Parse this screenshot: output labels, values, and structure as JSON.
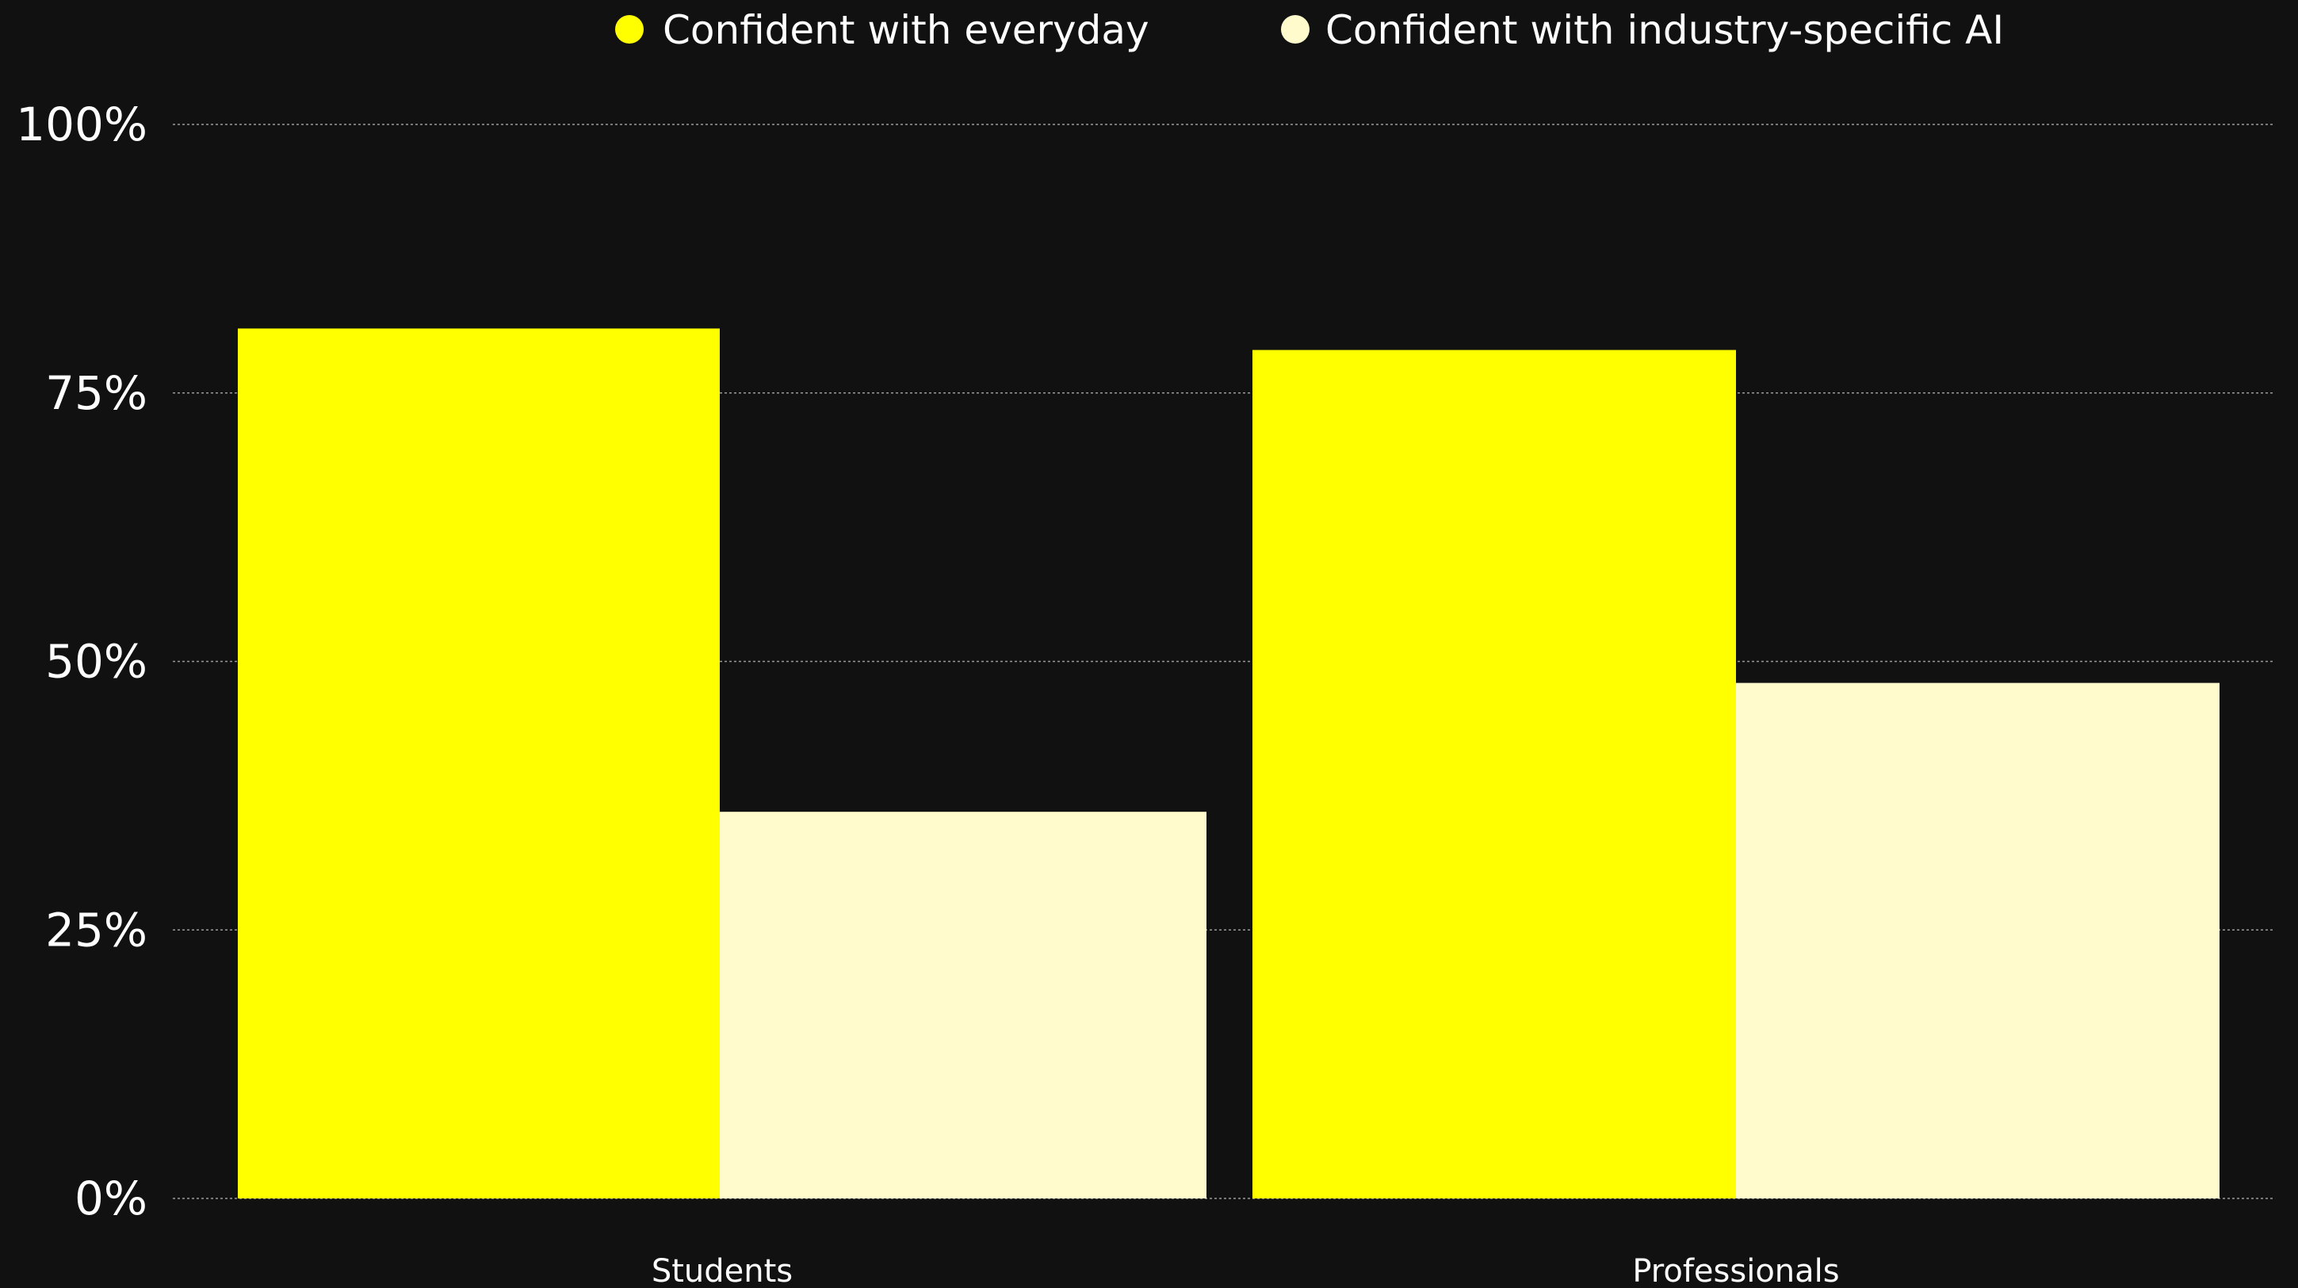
{
  "chart_data": {
    "type": "bar",
    "categories": [
      "Students",
      "Professionals"
    ],
    "series": [
      {
        "name": "Confident with everyday",
        "values": [
          81,
          79
        ],
        "color": "#ffff00"
      },
      {
        "name": "Confident with industry-specific AI",
        "values": [
          36,
          48
        ],
        "color": "#fffbcc"
      }
    ],
    "ylim": [
      0,
      100
    ],
    "yticks": [
      0,
      25,
      50,
      75,
      100
    ],
    "ytick_labels": [
      "0%",
      "25%",
      "50%",
      "75%",
      "100%"
    ],
    "grid": true,
    "legend_position": "top-center",
    "background": "#111111"
  }
}
